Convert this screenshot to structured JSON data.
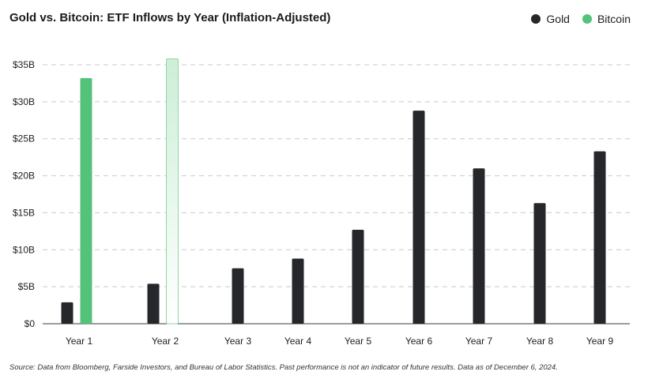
{
  "chart_data": {
    "type": "bar",
    "title": "Gold vs. Bitcoin: ETF Inflows by Year (Inflation-Adjusted)",
    "categories": [
      "Year 1",
      "Year 2",
      "Year 3",
      "Year 4",
      "Year 5",
      "Year 6",
      "Year 7",
      "Year 8",
      "Year 9"
    ],
    "series": [
      {
        "name": "Gold",
        "color": "#26272b",
        "values": [
          2.9,
          5.4,
          7.5,
          8.8,
          12.7,
          28.8,
          21.0,
          16.3,
          23.3
        ]
      },
      {
        "name": "Bitcoin",
        "color": "#55c27b",
        "values": [
          33.2,
          35.8,
          null,
          null,
          null,
          null,
          null,
          null,
          null
        ]
      }
    ],
    "projected": [
      {
        "series": "Bitcoin",
        "category": "Year 2"
      }
    ],
    "y_ticks": [
      "$0",
      "$5B",
      "$10B",
      "$15B",
      "$20B",
      "$25B",
      "$30B",
      "$35B"
    ],
    "ylim": [
      0,
      35
    ],
    "unit": "B USD",
    "grid": true,
    "legend_position": "top-right",
    "source": "Source: Data from Bloomberg, Farside Investors, and Bureau of Labor Statistics. Past performance is not an indicator of future results. Data as of December 6, 2024."
  }
}
